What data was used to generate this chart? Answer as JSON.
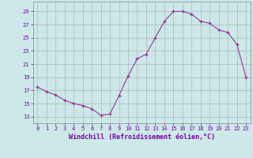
{
  "x": [
    0,
    1,
    2,
    3,
    4,
    5,
    6,
    7,
    8,
    9,
    10,
    11,
    12,
    13,
    14,
    15,
    16,
    17,
    18,
    19,
    20,
    21,
    22,
    23
  ],
  "y": [
    17.5,
    16.8,
    16.3,
    15.5,
    15.0,
    14.7,
    14.2,
    13.2,
    13.4,
    16.2,
    19.2,
    21.8,
    22.5,
    25.0,
    27.5,
    29.0,
    29.0,
    28.6,
    27.5,
    27.2,
    26.2,
    25.8,
    24.0,
    19.0
  ],
  "line_color": "#993399",
  "marker_color": "#993399",
  "bg_color": "#cce8e8",
  "grid_color": "#aabbbb",
  "xlabel": "Windchill (Refroidissement éolien,°C)",
  "xlabel_color": "#7700aa",
  "ylabel_ticks": [
    13,
    15,
    17,
    19,
    21,
    23,
    25,
    27,
    29
  ],
  "xlim": [
    -0.5,
    23.5
  ],
  "ylim": [
    12.0,
    30.5
  ],
  "xticks": [
    0,
    1,
    2,
    3,
    4,
    5,
    6,
    7,
    8,
    9,
    10,
    11,
    12,
    13,
    14,
    15,
    16,
    17,
    18,
    19,
    20,
    21,
    22,
    23
  ],
  "tick_color": "#7700aa",
  "tick_fontsize": 5.0,
  "xlabel_fontsize": 6.0
}
